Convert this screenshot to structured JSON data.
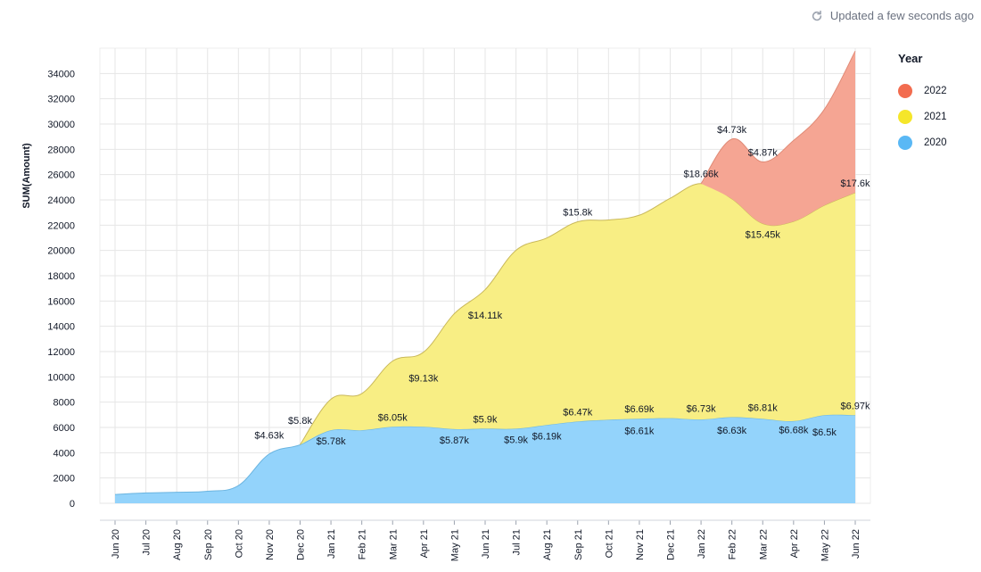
{
  "status": {
    "text": "Updated a few seconds ago",
    "icon": "refresh-icon"
  },
  "chart_data": {
    "type": "area",
    "stacked": true,
    "ylabel": "SUM(Amount)",
    "xlabel": "",
    "ylim": [
      0,
      36000
    ],
    "y_ticks": [
      0,
      2000,
      4000,
      6000,
      8000,
      10000,
      12000,
      14000,
      16000,
      18000,
      20000,
      22000,
      24000,
      26000,
      28000,
      30000,
      32000,
      34000
    ],
    "grid": true,
    "legend": {
      "title": "Year",
      "position": "right"
    },
    "categories": [
      "Jun 20",
      "Jul 20",
      "Aug 20",
      "Sep 20",
      "Oct 20",
      "Nov 20",
      "Dec 20",
      "Jan 21",
      "Feb 21",
      "Mar 21",
      "Apr 21",
      "May 21",
      "Jun 21",
      "Jul 21",
      "Aug 21",
      "Sep 21",
      "Oct 21",
      "Nov 21",
      "Dec 21",
      "Jan 22",
      "Feb 22",
      "Mar 22",
      "Apr 22",
      "May 22",
      "Jun 22"
    ],
    "series": [
      {
        "name": "2020",
        "color": "#5ac8fa",
        "values": [
          700,
          820,
          870,
          950,
          1400,
          3900,
          4630,
          5780,
          5780,
          6050,
          6050,
          5870,
          5900,
          5900,
          6190,
          6470,
          6610,
          6690,
          6730,
          6630,
          6810,
          6680,
          6500,
          6970,
          6970
        ]
      },
      {
        "name": "2021",
        "color": "#f7e949",
        "values": [
          0,
          0,
          0,
          0,
          0,
          0,
          0,
          2450,
          2900,
          5200,
          5900,
          9130,
          11000,
          14110,
          14800,
          15800,
          15800,
          16100,
          17400,
          18660,
          17270,
          15450,
          15800,
          16600,
          17600
        ]
      },
      {
        "name": "2022",
        "color": "#f26c4f",
        "values": [
          0,
          0,
          0,
          0,
          0,
          0,
          0,
          0,
          0,
          0,
          0,
          0,
          0,
          0,
          0,
          0,
          0,
          0,
          0,
          0,
          4730,
          4870,
          6400,
          7600,
          11200
        ]
      }
    ],
    "annotations": [
      {
        "category": "Nov 20",
        "y": 4630,
        "text": "$4.63k",
        "pos": "above"
      },
      {
        "category": "Dec 20",
        "y": 5800,
        "text": "$5.8k",
        "pos": "above"
      },
      {
        "category": "Jan 21",
        "y": 5780,
        "text": "$5.78k",
        "pos": "below"
      },
      {
        "category": "Mar 21",
        "y": 6050,
        "text": "$6.05k",
        "pos": "above"
      },
      {
        "category": "Apr 21",
        "y": 9130,
        "text": "$9.13k",
        "pos": "above"
      },
      {
        "category": "May 21",
        "y": 5870,
        "text": "$5.87k",
        "pos": "below"
      },
      {
        "category": "Jun 21",
        "y": 5900,
        "text": "$5.9k",
        "pos": "above"
      },
      {
        "category": "Jun 21",
        "y": 14110,
        "text": "$14.11k",
        "pos": "above"
      },
      {
        "category": "Jul 21",
        "y": 5900,
        "text": "$5.9k",
        "pos": "below"
      },
      {
        "category": "Aug 21",
        "y": 6190,
        "text": "$6.19k",
        "pos": "below"
      },
      {
        "category": "Sep 21",
        "y": 6470,
        "text": "$6.47k",
        "pos": "above"
      },
      {
        "category": "Sep 21",
        "y": 15800,
        "text": "$15.8k",
        "pos": "above"
      },
      {
        "category": "Nov 21",
        "y": 6610,
        "text": "$6.61k",
        "pos": "below"
      },
      {
        "category": "Nov 21",
        "y": 6690,
        "text": "$6.69k",
        "pos": "above"
      },
      {
        "category": "Jan 22",
        "y": 6730,
        "text": "$6.73k",
        "pos": "above"
      },
      {
        "category": "Jan 22",
        "y": 18660,
        "text": "$18.66k",
        "pos": "above"
      },
      {
        "category": "Feb 22",
        "y": 6630,
        "text": "$6.63k",
        "pos": "below"
      },
      {
        "category": "Feb 22",
        "y": 4730,
        "text": "$4.73k",
        "pos": "above"
      },
      {
        "category": "Mar 22",
        "y": 6810,
        "text": "$6.81k",
        "pos": "above"
      },
      {
        "category": "Mar 22",
        "y": 15450,
        "text": "$15.45k",
        "pos": "below"
      },
      {
        "category": "Mar 22",
        "y": 4870,
        "text": "$4.87k",
        "pos": "above"
      },
      {
        "category": "Apr 22",
        "y": 6680,
        "text": "$6.68k",
        "pos": "below"
      },
      {
        "category": "May 22",
        "y": 6500,
        "text": "$6.5k",
        "pos": "below"
      },
      {
        "category": "Jun 22",
        "y": 6970,
        "text": "$6.97k",
        "pos": "above"
      },
      {
        "category": "Jun 22",
        "y": 17600,
        "text": "$17.6k",
        "pos": "above"
      }
    ]
  }
}
